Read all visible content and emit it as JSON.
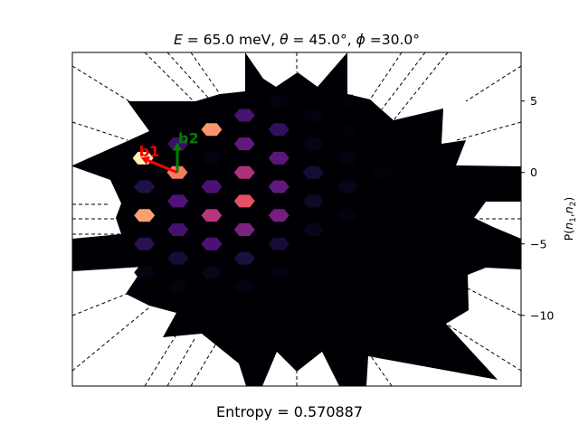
{
  "chart_data": {
    "type": "heatmap",
    "title": "E = 65.0 meV, θ = 45.0°, ϕ =30.0°",
    "title_parts": {
      "e_sym": "E",
      "e_val": " = 65.0 meV, ",
      "theta_sym": "θ",
      "theta_val": " = 45.0°, ",
      "phi_sym": "ϕ",
      "phi_val": " =30.0°"
    },
    "ylabel": "P(n₁,n₂)",
    "ylabel_parts": {
      "pre": "P(",
      "n": "n",
      "s1": "1",
      "comma": ",",
      "s2": "2",
      "post": ")"
    },
    "y_ticks": [
      {
        "value": 5,
        "label": "5"
      },
      {
        "value": 0,
        "label": "0"
      },
      {
        "value": -5,
        "label": "−5"
      },
      {
        "value": -10,
        "label": "−10"
      }
    ],
    "ylim": [
      -14.95,
      8.4
    ],
    "colormap": "magma",
    "grid": false,
    "footer": "Entropy = 0.570887",
    "vectors": [
      {
        "label": "b1",
        "color": "#ff0000",
        "from": [
          0,
          0
        ],
        "to": [
          -2.55,
          1.05
        ]
      },
      {
        "label": "b2",
        "color": "#008000",
        "from": [
          0,
          0
        ],
        "to": [
          0,
          2.1
        ]
      }
    ],
    "cells": [
      {
        "x": -2.4,
        "y": 1.0,
        "p": 0.97
      },
      {
        "x": 0,
        "y": 0,
        "p": 0.72
      },
      {
        "x": 2.4,
        "y": 3.0,
        "p": 0.78
      },
      {
        "x": 4.7,
        "y": 4.0,
        "p": 0.23
      },
      {
        "x": 7.1,
        "y": 5.0,
        "p": 0.02
      },
      {
        "x": 2.4,
        "y": 1.0,
        "p": 0.02
      },
      {
        "x": 4.7,
        "y": 2.0,
        "p": 0.3
      },
      {
        "x": 7.1,
        "y": 3.0,
        "p": 0.18
      },
      {
        "x": 9.5,
        "y": 4.0,
        "p": 0.02
      },
      {
        "x": 11.9,
        "y": 5.0,
        "p": 0.01
      },
      {
        "x": 0.05,
        "y": 2.0,
        "p": 0.2
      },
      {
        "x": -2.3,
        "y": -1.0,
        "p": 0.14
      },
      {
        "x": 2.4,
        "y": -1.0,
        "p": 0.24
      },
      {
        "x": 4.7,
        "y": 0.0,
        "p": 0.48
      },
      {
        "x": 7.1,
        "y": 1.0,
        "p": 0.28
      },
      {
        "x": 9.5,
        "y": 2.0,
        "p": 0.03
      },
      {
        "x": 11.9,
        "y": 3.0,
        "p": 0.01
      },
      {
        "x": 0.05,
        "y": -2.0,
        "p": 0.25
      },
      {
        "x": 2.4,
        "y": -3.0,
        "p": 0.5
      },
      {
        "x": 4.7,
        "y": -2.0,
        "p": 0.63
      },
      {
        "x": 7.1,
        "y": -1.0,
        "p": 0.3
      },
      {
        "x": 9.5,
        "y": 0.0,
        "p": 0.1
      },
      {
        "x": 11.9,
        "y": 1.0,
        "p": 0.02
      },
      {
        "x": -2.3,
        "y": -3.0,
        "p": 0.8
      },
      {
        "x": 0.05,
        "y": -4.0,
        "p": 0.22
      },
      {
        "x": 2.4,
        "y": -5.0,
        "p": 0.24
      },
      {
        "x": 4.7,
        "y": -4.0,
        "p": 0.36
      },
      {
        "x": 7.1,
        "y": -3.0,
        "p": 0.34
      },
      {
        "x": 9.5,
        "y": -2.0,
        "p": 0.07
      },
      {
        "x": 11.9,
        "y": -1.0,
        "p": 0.04
      },
      {
        "x": 14.3,
        "y": 0.0,
        "p": 0.01
      },
      {
        "x": -2.3,
        "y": -5.0,
        "p": 0.16
      },
      {
        "x": 0.05,
        "y": -6.0,
        "p": 0.1
      },
      {
        "x": 2.4,
        "y": -7.0,
        "p": 0.04
      },
      {
        "x": 4.7,
        "y": -6.0,
        "p": 0.12
      },
      {
        "x": 7.1,
        "y": -5.0,
        "p": 0.1
      },
      {
        "x": 9.5,
        "y": -4.0,
        "p": 0.04
      },
      {
        "x": 11.9,
        "y": -3.0,
        "p": 0.02
      },
      {
        "x": -2.3,
        "y": -7.0,
        "p": 0.03
      },
      {
        "x": 0.05,
        "y": -8.0,
        "p": 0.02
      },
      {
        "x": 4.7,
        "y": -8.0,
        "p": 0.02
      },
      {
        "x": 7.1,
        "y": -7.0,
        "p": 0.02
      }
    ]
  }
}
